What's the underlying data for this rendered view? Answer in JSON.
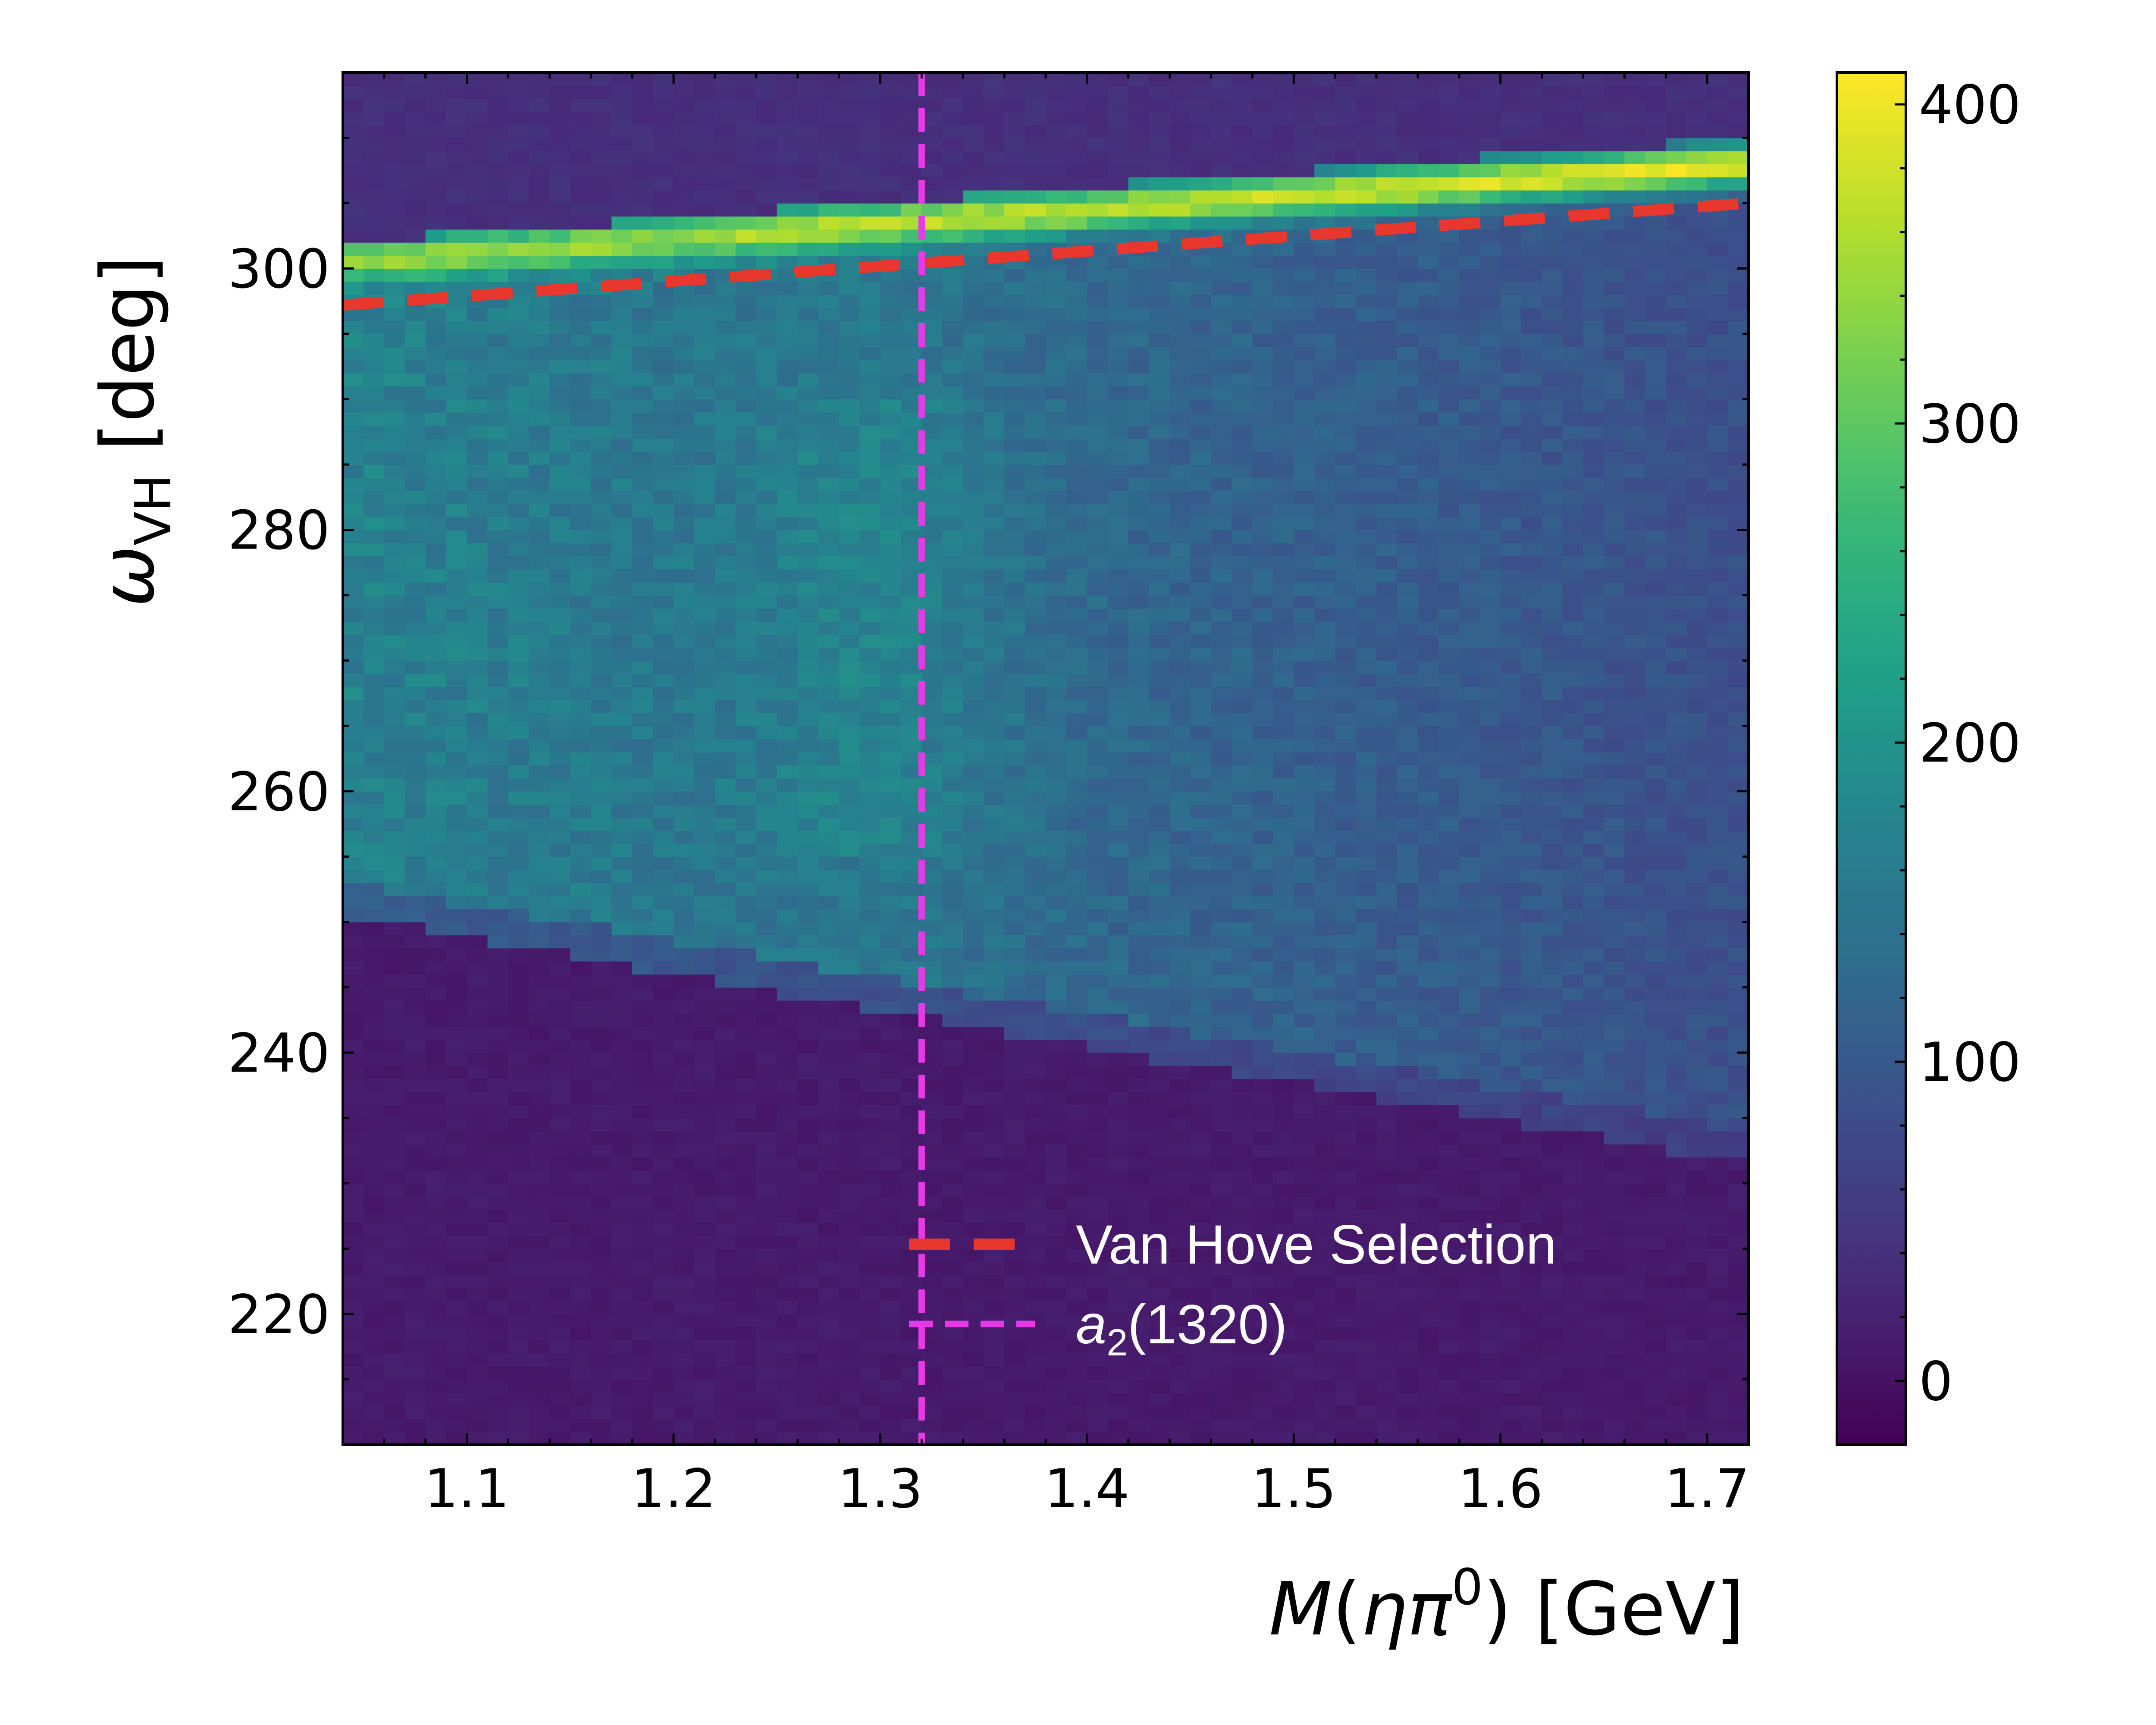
{
  "chart_data": {
    "type": "heatmap",
    "xlabel": {
      "main": "M",
      "paren_open": "(",
      "eta": "η",
      "pi": "π",
      "sup": "0",
      "paren_close": ")",
      "unit": " [GeV]"
    },
    "ylabel": {
      "omega": "ω",
      "sub": "VH",
      "unit": " [deg]"
    },
    "xlim": [
      1.04,
      1.72
    ],
    "ylim": [
      210,
      315
    ],
    "x_ticks": [
      1.1,
      1.2,
      1.3,
      1.4,
      1.5,
      1.6,
      1.7
    ],
    "x_tick_labels": [
      "1.1",
      "1.2",
      "1.3",
      "1.4",
      "1.5",
      "1.6",
      "1.7"
    ],
    "y_ticks": [
      220,
      240,
      260,
      280,
      300
    ],
    "y_tick_labels": [
      "220",
      "240",
      "260",
      "280",
      "300"
    ],
    "colorbar": {
      "colormap": "viridis",
      "range": [
        -20,
        410
      ],
      "ticks": [
        0,
        100,
        200,
        300,
        400
      ],
      "tick_labels": [
        "0",
        "100",
        "200",
        "300",
        "400"
      ]
    },
    "bins": {
      "nx": 68,
      "ny": 105
    },
    "density_model": {
      "band_lower_edge": [
        [
          1.04,
          251.5
        ],
        [
          1.72,
          232.5
        ]
      ],
      "band_upper_edge": [
        [
          1.04,
          302.0
        ],
        [
          1.72,
          310.0
        ]
      ],
      "bright_ridge": [
        [
          1.04,
          300.5
        ],
        [
          1.72,
          308.0
        ]
      ],
      "band_left_level": 170,
      "band_right_level": 85,
      "ridge_left_level": 330,
      "ridge_right_level": 400,
      "background_above": 30,
      "background_below": 5
    },
    "series": [
      {
        "name": "Van Hove Selection",
        "style": "dashed",
        "color": "#e8372c",
        "x": [
          1.04,
          1.72
        ],
        "y": [
          297.2,
          305.0
        ]
      },
      {
        "name": "a",
        "name_sub": "2",
        "name_suffix": "(1320)",
        "style": "dashed",
        "color": "#e63ae8",
        "x_const": 1.32
      }
    ],
    "legend": {
      "placement": "bottom-center"
    }
  }
}
